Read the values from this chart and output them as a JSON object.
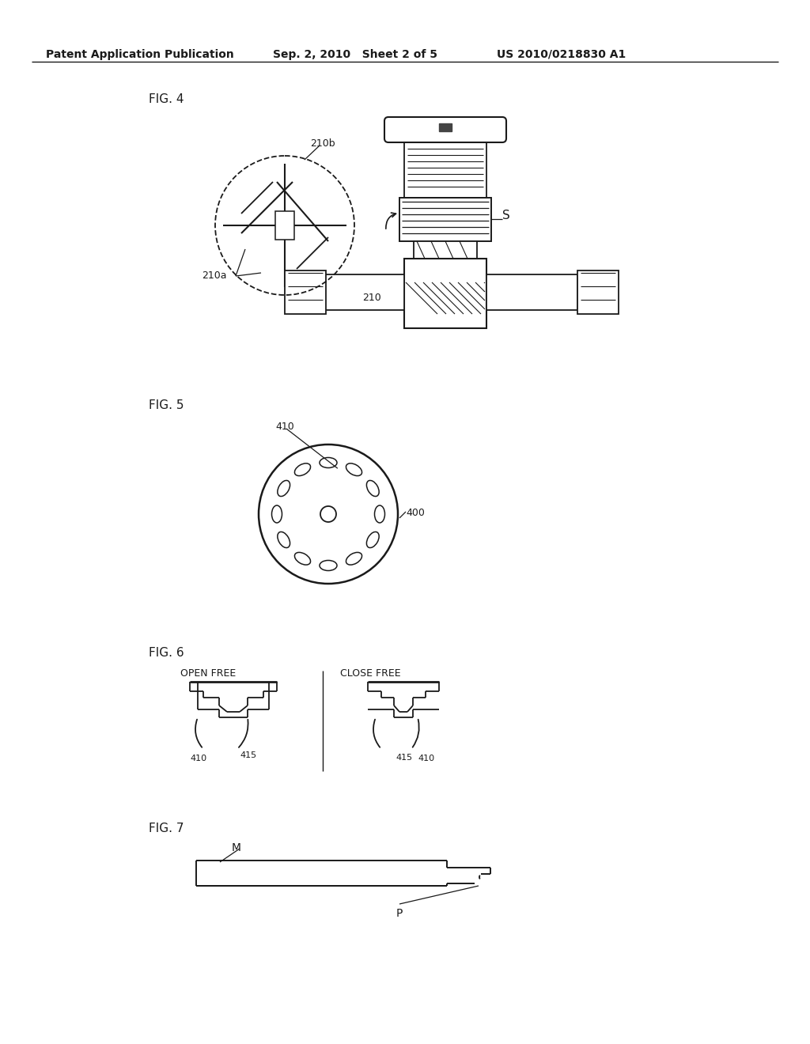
{
  "bg_color": "#ffffff",
  "header_left": "Patent Application Publication",
  "header_mid": "Sep. 2, 2010   Sheet 2 of 5",
  "header_right": "US 2010/0218830 A1",
  "fig4_label": "FIG. 4",
  "fig5_label": "FIG. 5",
  "fig6_label": "FIG. 6",
  "fig7_label": "FIG. 7",
  "label_210b": "210b",
  "label_210a": "210a",
  "label_210": "210",
  "label_S": "S",
  "label_410_fig5": "410",
  "label_400": "400",
  "label_410_fig6_left": "410",
  "label_415_fig6_left": "415",
  "label_410_fig6_right": "410",
  "label_415_fig6_right": "415",
  "label_open_free": "OPEN FREE",
  "label_close_free": "CLOSE FREE",
  "label_M": "M",
  "label_P": "P",
  "line_color": "#1a1a1a"
}
